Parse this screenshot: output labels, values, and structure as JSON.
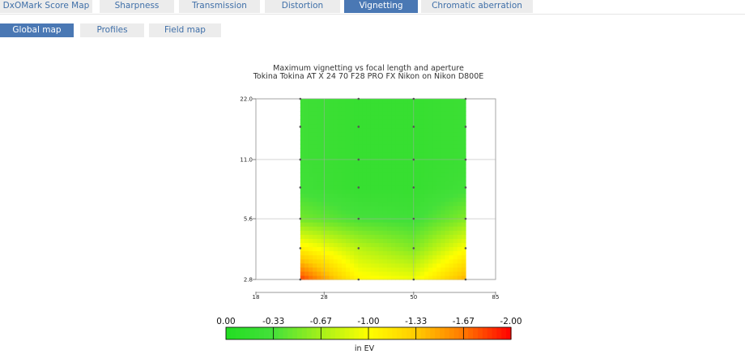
{
  "tabs": [
    {
      "label": "DxOMark Score Map",
      "active": false
    },
    {
      "label": "Sharpness",
      "active": false
    },
    {
      "label": "Transmission",
      "active": false
    },
    {
      "label": "Distortion",
      "active": false
    },
    {
      "label": "Vignetting",
      "active": true
    },
    {
      "label": "Chromatic aberration",
      "active": false
    }
  ],
  "subtabs": [
    {
      "label": "Global map",
      "active": true
    },
    {
      "label": "Profiles",
      "active": false
    },
    {
      "label": "Field map",
      "active": false
    }
  ],
  "colors": {
    "tab_active": "#4a78b4",
    "tab_inactive": "#ececec",
    "tab_text": "#3f6fa8"
  },
  "chart_data": {
    "type": "heatmap",
    "title": "Maximum vignetting vs focal length and aperture",
    "subtitle": "Tokina Tokina AT X 24 70 F28 PRO FX Nikon on Nikon D800E",
    "x_ticks": [
      "18",
      "28",
      "50",
      "85"
    ],
    "y_ticks": [
      "22.0",
      "11.0",
      "5.6",
      "2.8"
    ],
    "xlim": [
      18,
      85
    ],
    "ylim": [
      2.8,
      22.0
    ],
    "x_scale": "log",
    "y_scale": "log",
    "focal_lengths": [
      24,
      35,
      50,
      70
    ],
    "apertures": [
      2.8,
      4,
      5.6,
      8,
      11,
      16,
      22
    ],
    "vignetting_ev": [
      [
        -1.85,
        -1.05,
        -0.95,
        -1.45
      ],
      [
        -1.1,
        -0.75,
        -0.55,
        -1.0
      ],
      [
        -0.5,
        -0.35,
        -0.3,
        -0.55
      ],
      [
        -0.3,
        -0.2,
        -0.2,
        -0.3
      ],
      [
        -0.28,
        -0.2,
        -0.2,
        -0.25
      ],
      [
        -0.28,
        -0.2,
        -0.2,
        -0.25
      ],
      [
        -0.28,
        -0.2,
        -0.2,
        -0.25
      ]
    ],
    "colorbar": {
      "labels": [
        "0.00",
        "-0.33",
        "-0.67",
        "-1.00",
        "-1.33",
        "-1.67",
        "-2.00"
      ],
      "values": [
        0,
        -0.33,
        -0.67,
        -1.0,
        -1.33,
        -1.67,
        -2.0
      ],
      "colors": [
        "#22dd22",
        "#44e03a",
        "#a6f01a",
        "#ffff00",
        "#ffcc00",
        "#ff7700",
        "#ff0000"
      ],
      "unit": "in EV"
    },
    "grid": true
  }
}
